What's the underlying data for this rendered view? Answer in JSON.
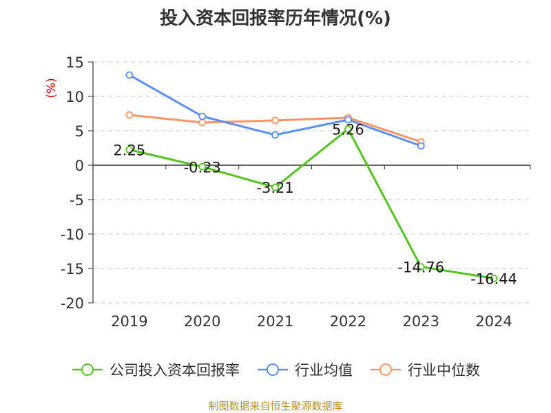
{
  "chart_data": {
    "type": "line",
    "title": "投入资本回报率历年情况(%)",
    "ylabel": "(%)",
    "xlabel": "",
    "categories": [
      "2019",
      "2020",
      "2021",
      "2022",
      "2023",
      "2024"
    ],
    "ylim": [
      -20,
      15
    ],
    "yticks": [
      15,
      10,
      5,
      0,
      -5,
      -10,
      -15,
      -20
    ],
    "grid": true,
    "legend_position": "bottom",
    "series": [
      {
        "name": "公司投入资本回报率",
        "color": "#52c41a",
        "values": [
          2.25,
          -0.23,
          -3.21,
          5.26,
          -14.76,
          -16.44
        ],
        "data_labels": [
          "2.25",
          "-0.23",
          "-3.21",
          "5.26",
          "-14.76",
          "-16.44"
        ]
      },
      {
        "name": "行业均值",
        "color": "#5b8ff9",
        "values": [
          13.1,
          7.1,
          4.4,
          6.6,
          2.8,
          null
        ]
      },
      {
        "name": "行业中位数",
        "color": "#ff9463",
        "values": [
          7.3,
          6.2,
          6.5,
          6.9,
          3.4,
          null
        ]
      }
    ],
    "source": "制图数据来自恒生聚源数据库"
  }
}
